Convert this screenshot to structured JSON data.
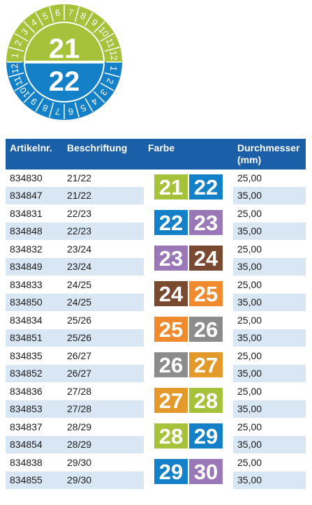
{
  "seal": {
    "top_year": "21",
    "bottom_year": "22",
    "months_top": [
      "1",
      "2",
      "3",
      "4",
      "5",
      "6",
      "7",
      "8",
      "9",
      "10",
      "11",
      "12"
    ],
    "months_bottom": [
      "1",
      "2",
      "3",
      "4",
      "5",
      "6",
      "7",
      "8",
      "9",
      "10",
      "11",
      "12"
    ],
    "colors": {
      "top": "#a6c13a",
      "bottom": "#1380c7"
    }
  },
  "table": {
    "headers": [
      "Artikelnr.",
      "Beschriftung",
      "Farbe",
      "Durchmesser (mm)"
    ],
    "rows": [
      {
        "art": "834830",
        "label": "21/22",
        "diam": "25,00"
      },
      {
        "art": "834847",
        "label": "21/22",
        "diam": "35,00"
      },
      {
        "art": "834831",
        "label": "22/23",
        "diam": "25,00"
      },
      {
        "art": "834848",
        "label": "22/23",
        "diam": "35,00"
      },
      {
        "art": "834832",
        "label": "23/24",
        "diam": "25,00"
      },
      {
        "art": "834849",
        "label": "23/24",
        "diam": "35,00"
      },
      {
        "art": "834833",
        "label": "24/25",
        "diam": "25,00"
      },
      {
        "art": "834850",
        "label": "24/25",
        "diam": "35,00"
      },
      {
        "art": "834834",
        "label": "25/26",
        "diam": "25,00"
      },
      {
        "art": "834851",
        "label": "25/26",
        "diam": "35,00"
      },
      {
        "art": "834835",
        "label": "26/27",
        "diam": "25,00"
      },
      {
        "art": "834852",
        "label": "26/27",
        "diam": "35,00"
      },
      {
        "art": "834836",
        "label": "27/28",
        "diam": "25,00"
      },
      {
        "art": "834853",
        "label": "27/28",
        "diam": "35,00"
      },
      {
        "art": "834837",
        "label": "28/29",
        "diam": "25,00"
      },
      {
        "art": "834854",
        "label": "28/29",
        "diam": "35,00"
      },
      {
        "art": "834838",
        "label": "29/30",
        "diam": "25,00"
      },
      {
        "art": "834855",
        "label": "29/30",
        "diam": "35,00"
      }
    ],
    "swatches": [
      {
        "a": "21",
        "ca": "#a6c13a",
        "b": "22",
        "cb": "#1380c7"
      },
      {
        "a": "22",
        "ca": "#1380c7",
        "b": "23",
        "cb": "#9a78b8"
      },
      {
        "a": "23",
        "ca": "#9a78b8",
        "b": "24",
        "cb": "#7a4a30"
      },
      {
        "a": "24",
        "ca": "#7a4a30",
        "b": "25",
        "cb": "#ef8a2f"
      },
      {
        "a": "25",
        "ca": "#ef8a2f",
        "b": "26",
        "cb": "#8c8c8c"
      },
      {
        "a": "26",
        "ca": "#8c8c8c",
        "b": "27",
        "cb": "#e39a2a"
      },
      {
        "a": "27",
        "ca": "#e39a2a",
        "b": "28",
        "cb": "#a6c13a"
      },
      {
        "a": "28",
        "ca": "#a6c13a",
        "b": "29",
        "cb": "#1380c7"
      },
      {
        "a": "29",
        "ca": "#1380c7",
        "b": "30",
        "cb": "#9a78b8"
      }
    ]
  }
}
